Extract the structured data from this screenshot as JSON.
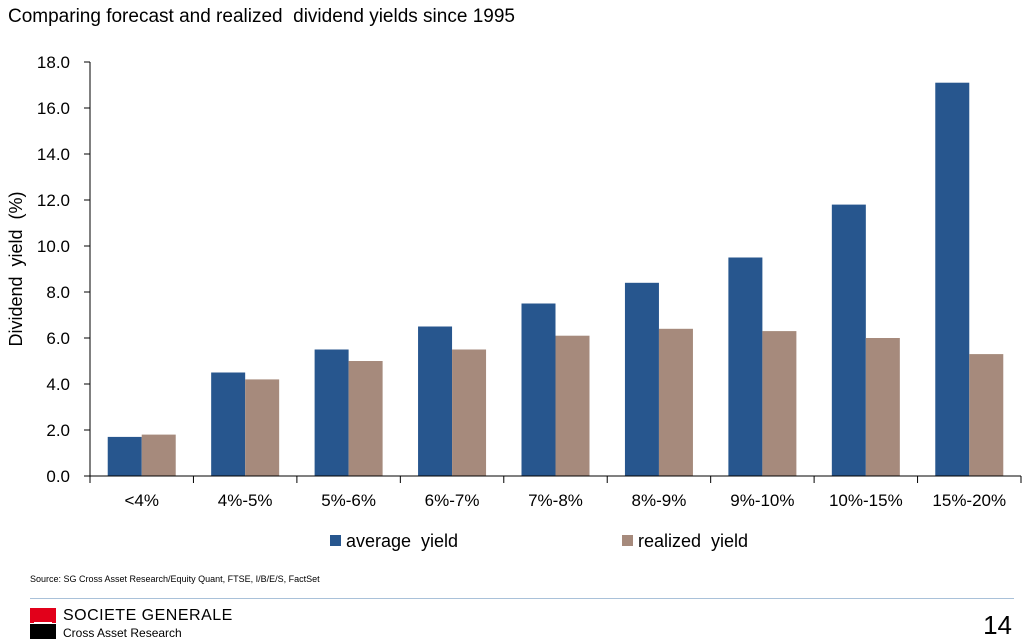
{
  "title": "Comparing forecast and realized  dividend yields since 1995",
  "source": "Source: SG Cross Asset Research/Equity Quant, FTSE, I/B/E/S, FactSet",
  "footer": {
    "brand": "SOCIETE GENERALE",
    "sub": "Cross Asset Research",
    "page": "14"
  },
  "colors": {
    "average": "#27568e",
    "realized": "#a68a7c",
    "logo_red": "#e2001a",
    "rule": "#a9c1d9"
  },
  "chart_data": {
    "type": "bar",
    "title": "",
    "xlabel": "",
    "ylabel": "Dividend  yield  (%)",
    "ylim": [
      0,
      18
    ],
    "yticks": [
      "0.0",
      "2.0",
      "4.0",
      "6.0",
      "8.0",
      "10.0",
      "12.0",
      "14.0",
      "16.0",
      "18.0"
    ],
    "categories": [
      "<4%",
      "4%-5%",
      "5%-6%",
      "6%-7%",
      "7%-8%",
      "8%-9%",
      "9%-10%",
      "10%-15%",
      "15%-20%"
    ],
    "series": [
      {
        "name": "average  yield",
        "values": [
          1.7,
          4.5,
          5.5,
          6.5,
          7.5,
          8.4,
          9.5,
          11.8,
          17.1
        ]
      },
      {
        "name": "realized  yield",
        "values": [
          1.8,
          4.2,
          5.0,
          5.5,
          6.1,
          6.4,
          6.3,
          6.0,
          5.3
        ]
      }
    ],
    "grid": false,
    "legend": "bottom"
  }
}
